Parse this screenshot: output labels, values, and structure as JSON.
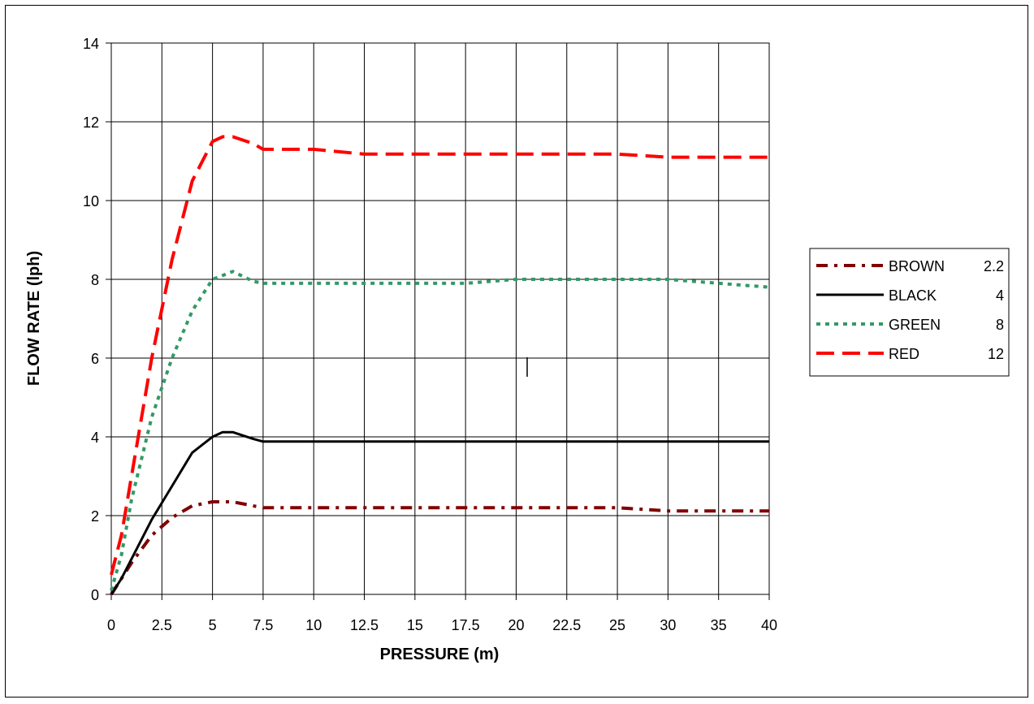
{
  "chart_data": {
    "type": "line",
    "xlabel": "PRESSURE (m)",
    "ylabel": "FLOW RATE (lph)",
    "xlim": [
      0,
      40
    ],
    "ylim": [
      0,
      14
    ],
    "x_ticks": [
      "0",
      "2.5",
      "5",
      "7.5",
      "10",
      "12.5",
      "15",
      "17.5",
      "20",
      "22.5",
      "25",
      "30",
      "35",
      "40"
    ],
    "y_ticks": [
      "0",
      "2",
      "4",
      "6",
      "8",
      "10",
      "12",
      "14"
    ],
    "grid": true,
    "legend_position": "right",
    "series": [
      {
        "name": "BROWN",
        "value_label": "2.2",
        "color": "#800000",
        "style": "dash-dot",
        "points": [
          [
            0,
            0
          ],
          [
            0.5,
            0.4
          ],
          [
            1,
            0.8
          ],
          [
            2,
            1.5
          ],
          [
            3,
            1.95
          ],
          [
            4,
            2.25
          ],
          [
            5,
            2.35
          ],
          [
            6,
            2.35
          ],
          [
            7,
            2.25
          ],
          [
            7.5,
            2.2
          ],
          [
            10,
            2.2
          ],
          [
            12.5,
            2.2
          ],
          [
            15,
            2.2
          ],
          [
            17.5,
            2.2
          ],
          [
            20,
            2.2
          ],
          [
            22.5,
            2.2
          ],
          [
            25,
            2.2
          ],
          [
            30,
            2.12
          ],
          [
            35,
            2.12
          ],
          [
            40,
            2.12
          ]
        ]
      },
      {
        "name": "BLACK",
        "value_label": "4",
        "color": "#000000",
        "style": "solid",
        "points": [
          [
            0,
            0
          ],
          [
            0.5,
            0.4
          ],
          [
            1,
            0.9
          ],
          [
            2,
            1.9
          ],
          [
            3,
            2.75
          ],
          [
            4,
            3.6
          ],
          [
            5,
            4.0
          ],
          [
            5.5,
            4.12
          ],
          [
            6,
            4.12
          ],
          [
            7,
            3.95
          ],
          [
            7.5,
            3.88
          ],
          [
            10,
            3.88
          ],
          [
            12.5,
            3.88
          ],
          [
            15,
            3.88
          ],
          [
            17.5,
            3.88
          ],
          [
            20,
            3.88
          ],
          [
            22.5,
            3.88
          ],
          [
            25,
            3.88
          ],
          [
            30,
            3.88
          ],
          [
            35,
            3.88
          ],
          [
            40,
            3.88
          ]
        ]
      },
      {
        "name": "GREEN",
        "value_label": "8",
        "color": "#339966",
        "style": "dotted",
        "points": [
          [
            0,
            0.1
          ],
          [
            0.5,
            1.0
          ],
          [
            1,
            2.4
          ],
          [
            2,
            4.5
          ],
          [
            3,
            6.0
          ],
          [
            4,
            7.2
          ],
          [
            5,
            8.0
          ],
          [
            5.5,
            8.1
          ],
          [
            6,
            8.2
          ],
          [
            7,
            7.95
          ],
          [
            7.5,
            7.9
          ],
          [
            10,
            7.9
          ],
          [
            12.5,
            7.9
          ],
          [
            15,
            7.9
          ],
          [
            17.5,
            7.9
          ],
          [
            20,
            8.0
          ],
          [
            22.5,
            8.0
          ],
          [
            25,
            8.0
          ],
          [
            30,
            8.0
          ],
          [
            35,
            7.9
          ],
          [
            40,
            7.8
          ]
        ]
      },
      {
        "name": "RED",
        "value_label": "12",
        "color": "#ff0000",
        "style": "long-dash",
        "points": [
          [
            0,
            0.5
          ],
          [
            0.5,
            1.5
          ],
          [
            1,
            3.0
          ],
          [
            2,
            6.0
          ],
          [
            3,
            8.5
          ],
          [
            4,
            10.5
          ],
          [
            5,
            11.5
          ],
          [
            5.5,
            11.62
          ],
          [
            6,
            11.62
          ],
          [
            7,
            11.45
          ],
          [
            7.5,
            11.3
          ],
          [
            10,
            11.3
          ],
          [
            12.5,
            11.18
          ],
          [
            15,
            11.18
          ],
          [
            17.5,
            11.18
          ],
          [
            20,
            11.18
          ],
          [
            22.5,
            11.18
          ],
          [
            25,
            11.18
          ],
          [
            30,
            11.1
          ],
          [
            35,
            11.1
          ],
          [
            40,
            11.1
          ]
        ]
      }
    ]
  }
}
